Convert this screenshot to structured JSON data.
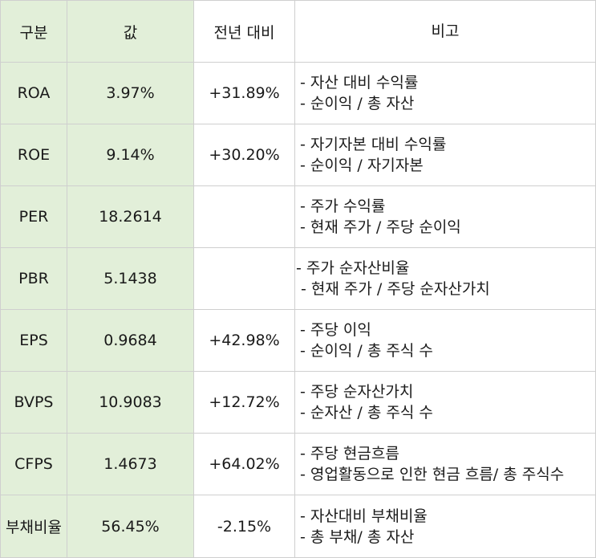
{
  "header": {
    "category": "구분",
    "value": "값",
    "yoy": "전년 대비",
    "note": "비고"
  },
  "rows": [
    {
      "category": "ROA",
      "value": "3.97%",
      "yoy": "+31.89%",
      "note": [
        "- 자산 대비 수익률",
        "- 순이익 / 총 자산"
      ]
    },
    {
      "category": "ROE",
      "value": "9.14%",
      "yoy": "+30.20%",
      "note": [
        "- 자기자본 대비 수익률",
        "- 순이익 / 자기자본"
      ]
    },
    {
      "category": "PER",
      "value": "18.2614",
      "yoy": "",
      "note": [
        "- 주가 수익률",
        "- 현재 주가 / 주당 순이익"
      ]
    },
    {
      "category": "PBR",
      "value": "5.1438",
      "yoy": "",
      "note": [
        "- 주가 순자산비율",
        " - 현재 주가 / 주당 순자산가치"
      ]
    },
    {
      "category": "EPS",
      "value": "0.9684",
      "yoy": "+42.98%",
      "note": [
        "- 주당 이익",
        "- 순이익 / 총 주식 수"
      ]
    },
    {
      "category": "BVPS",
      "value": "10.9083",
      "yoy": "+12.72%",
      "note": [
        "- 주당 순자산가치",
        "- 순자산 / 총 주식 수"
      ]
    },
    {
      "category": "CFPS",
      "value": "1.4673",
      "yoy": "+64.02%",
      "note": [
        "- 주당 현금흐름",
        "- 영업활동으로 인한 현금 흐름/ 총 주식수"
      ]
    },
    {
      "category": "부채비율",
      "value": "56.45%",
      "yoy": "-2.15%",
      "note": [
        "- 자산대비 부채비율",
        "- 총 부채/ 총 자산"
      ]
    }
  ]
}
